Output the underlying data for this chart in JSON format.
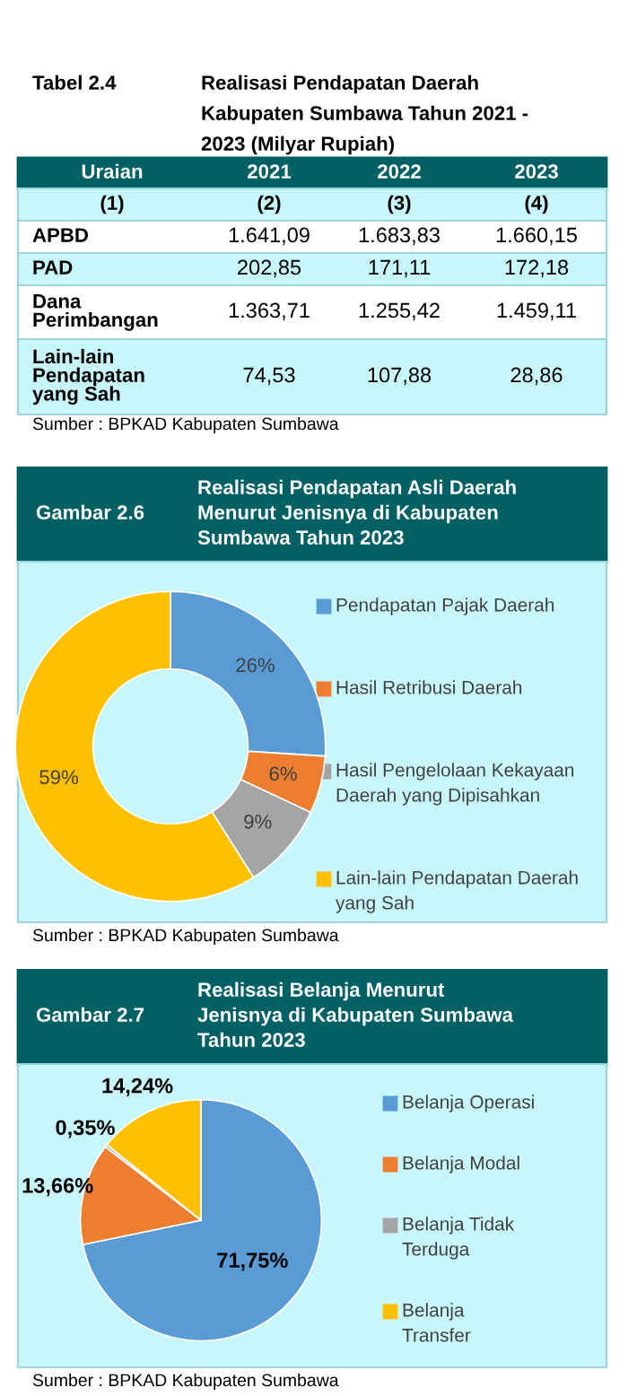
{
  "chart_data": [
    {
      "type": "other",
      "title": "Tabel 2.4 Realisasi Pendapatan Daerah Kabupaten Sumbawa Tahun 2021 - 2023 (Milyar Rupiah)",
      "categories": [
        "Uraian",
        "2021",
        "2022",
        "2023"
      ],
      "y_categories": [
        "(1)",
        "APBD",
        "PAD",
        "Dana Perimbangan",
        "Lain-lain Pendapatan yang Sah"
      ],
      "cell_labels": [
        [
          "(2)",
          "(3)",
          "(4)"
        ],
        [
          "1.641,09",
          "1.683,83",
          "1.660,15"
        ],
        [
          "202,85",
          "171,11",
          "172,18"
        ],
        [
          "1.363,71",
          "1.255,42",
          "1.459,11"
        ],
        [
          "74,53",
          "107,88",
          "28,86"
        ]
      ],
      "annotations": [
        "Sumber : BPKAD Kabupaten Sumbawa"
      ]
    },
    {
      "type": "donut",
      "subtitle": "Gambar 2.6",
      "title": "Realisasi Pendapatan Asli Daerah Menurut Jenisnya di Kabupaten Sumbawa Tahun 2023",
      "categories": [
        "Pendapatan Pajak Daerah",
        "Hasil Retribusi Daerah",
        "Hasil Pengelolaan Kekayaan Daerah yang Dipisahkan",
        "Lain-lain Pendapatan Daerah yang Sah"
      ],
      "values": [
        26,
        6,
        9,
        59
      ],
      "value_labels": [
        "26%",
        "6%",
        "9%",
        "59%"
      ],
      "colors": [
        "#5b9bd5",
        "#ed7d31",
        "#a5a5a5",
        "#ffc000"
      ],
      "legend": "right",
      "annotations": [
        "Sumber : BPKAD Kabupaten Sumbawa"
      ]
    },
    {
      "type": "pie",
      "subtitle": "Gambar 2.7",
      "title": "Realisasi Belanja Menurut Jenisnya di Kabupaten Sumbawa Tahun 2023",
      "categories": [
        "Belanja Operasi",
        "Belanja Modal",
        "Belanja Tidak Terduga",
        "Belanja Transfer"
      ],
      "values": [
        71.75,
        13.66,
        0.35,
        14.24
      ],
      "value_labels": [
        "71,75%",
        "13,66%",
        "0,35%",
        "14,24%"
      ],
      "colors": [
        "#5b9bd5",
        "#ed7d31",
        "#a5a5a5",
        "#ffc000"
      ],
      "legend": "right",
      "annotations": [
        "Sumber : BPKAD Kabupaten Sumbawa"
      ]
    }
  ]
}
